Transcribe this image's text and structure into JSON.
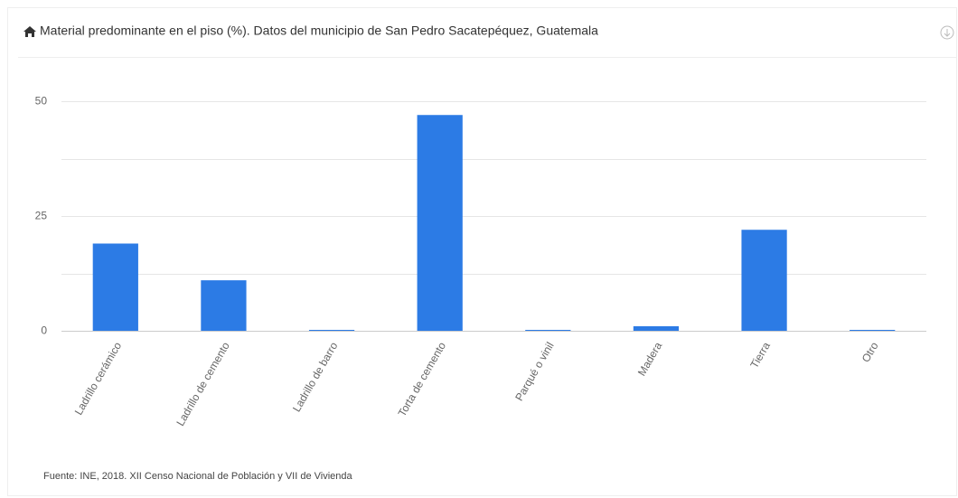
{
  "chart_data": {
    "type": "bar",
    "title": "Material predominante en el piso (%). Datos del municipio de San Pedro Sacatepéquez, Guatemala",
    "categories": [
      "Ladrillo cerámico",
      "Ladrillo de cemento",
      "Ladrillo de barro",
      "Torta de cemento",
      "Parqué o vinil",
      "Madera",
      "Tierra",
      "Otro"
    ],
    "values": [
      19,
      11,
      0.2,
      47,
      0.2,
      1,
      22,
      0.2
    ],
    "color": "#2c7be5",
    "ylim": [
      0,
      50
    ],
    "yticks": [
      0,
      25,
      50
    ],
    "minor_yticks": [
      12.5,
      37.5
    ],
    "grid": true,
    "source": "Fuente: INE, 2018. XII Censo Nacional de Población y VII de Vivienda"
  }
}
